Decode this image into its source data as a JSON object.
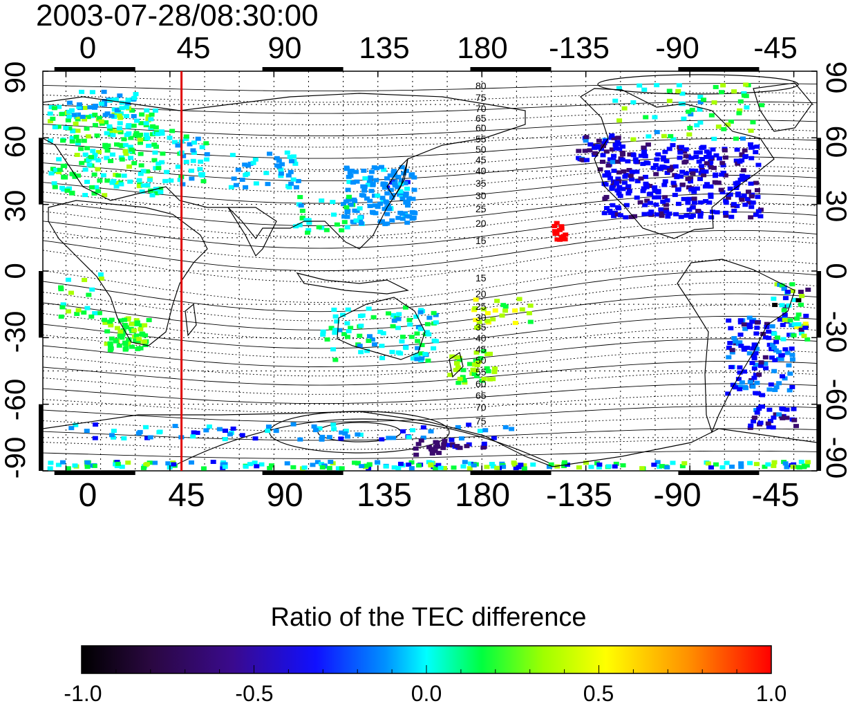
{
  "title": "2003-07-28/08:30:00",
  "map": {
    "lon_ticks": [
      "0",
      "45",
      "90",
      "135",
      "180",
      "-135",
      "-90",
      "-45"
    ],
    "lat_ticks_left": [
      "90",
      "60",
      "30",
      "0",
      "-30",
      "-60",
      "-90"
    ],
    "lat_ticks_right": [
      "90",
      "60",
      "30",
      "0",
      "-30",
      "-60",
      "-90"
    ],
    "lon_range_deg": [
      -10,
      325
    ],
    "lat_range_deg": [
      -90,
      90
    ],
    "meridian_marker_lon_deg": 50,
    "marker_color": "#e00000",
    "dip_labels_north": [
      "80",
      "75",
      "70",
      "65",
      "60",
      "55",
      "50",
      "45",
      "40",
      "35",
      "30",
      "25",
      "20",
      "15"
    ],
    "dip_labels_south": [
      "15",
      "20",
      "25",
      "30",
      "35",
      "40",
      "45",
      "50",
      "55",
      "60",
      "65",
      "70",
      "75"
    ]
  },
  "colorbar": {
    "title": "Ratio of the TEC difference",
    "labels": [
      "-1.0",
      "-0.5",
      "0.0",
      "0.5",
      "1.0"
    ],
    "range": [
      -1.0,
      1.0
    ],
    "colors": [
      "#000000",
      "#3a0a6e",
      "#0000ff",
      "#0090ff",
      "#00ffff",
      "#00ff3a",
      "#aaff00",
      "#ffff00",
      "#ffa000",
      "#ff0000"
    ]
  }
}
